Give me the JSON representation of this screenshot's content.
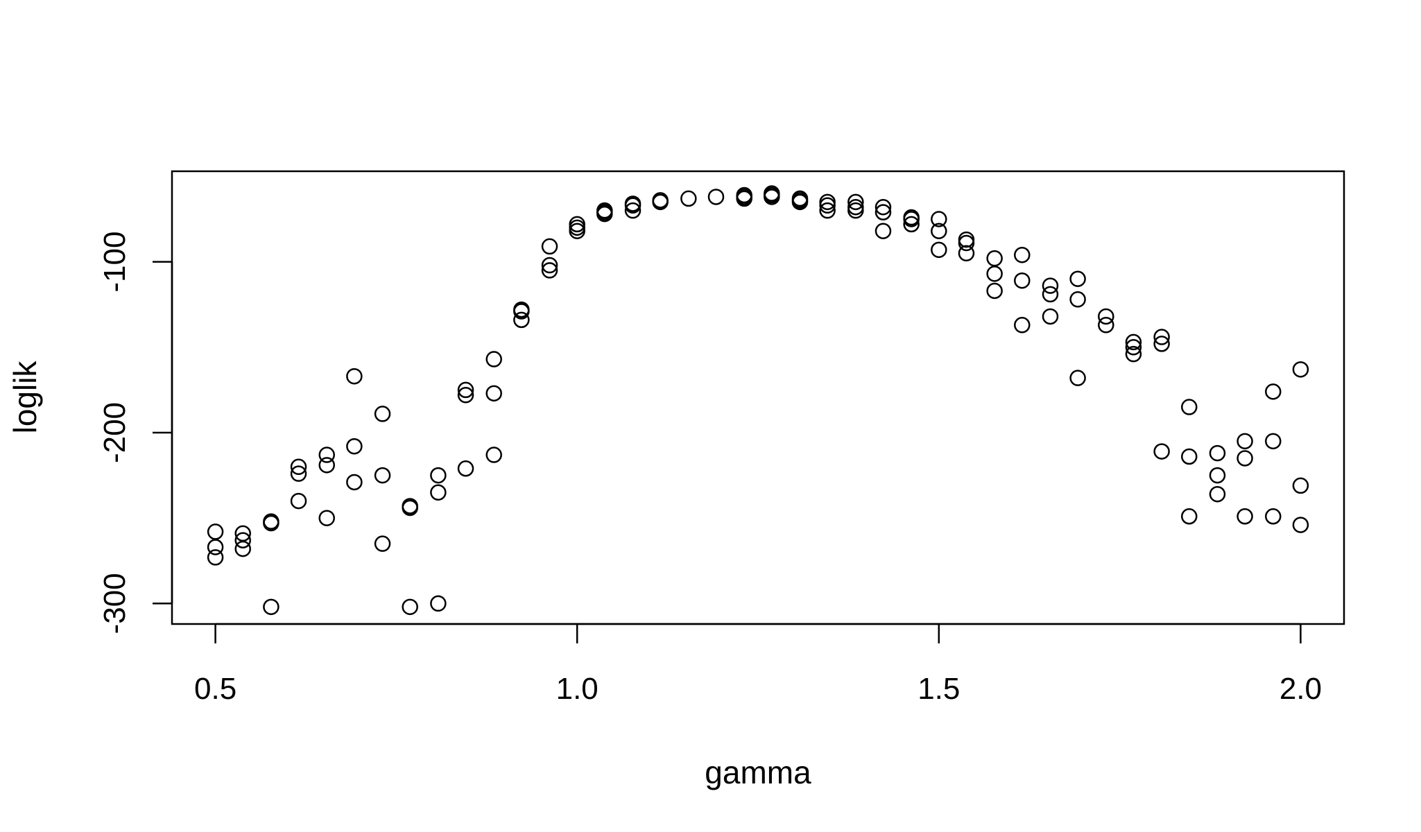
{
  "chart_data": {
    "type": "scatter",
    "title": "",
    "xlabel": "gamma",
    "ylabel": "loglik",
    "xlim": [
      0.44,
      2.06
    ],
    "ylim": [
      -312,
      -47
    ],
    "x_ticks": [
      {
        "value": 0.5,
        "label": "0.5"
      },
      {
        "value": 1.0,
        "label": "1.0"
      },
      {
        "value": 1.5,
        "label": "1.5"
      },
      {
        "value": 2.0,
        "label": "2.0"
      }
    ],
    "y_ticks": [
      {
        "value": -100,
        "label": "-100"
      },
      {
        "value": -200,
        "label": "-200"
      },
      {
        "value": -300,
        "label": "-300"
      }
    ],
    "grid": false,
    "marker": "open-circle",
    "color": "#000000",
    "series": [
      {
        "points": [
          [
            0.5,
            -258
          ],
          [
            0.5,
            -267
          ],
          [
            0.5,
            -273
          ],
          [
            0.538,
            -259
          ],
          [
            0.538,
            -263
          ],
          [
            0.538,
            -268
          ],
          [
            0.577,
            -252
          ],
          [
            0.577,
            -253
          ],
          [
            0.577,
            -302
          ],
          [
            0.615,
            -220
          ],
          [
            0.615,
            -224
          ],
          [
            0.615,
            -240
          ],
          [
            0.654,
            -213
          ],
          [
            0.654,
            -219
          ],
          [
            0.654,
            -250
          ],
          [
            0.692,
            -167
          ],
          [
            0.692,
            -208
          ],
          [
            0.692,
            -229
          ],
          [
            0.731,
            -189
          ],
          [
            0.731,
            -225
          ],
          [
            0.731,
            -265
          ],
          [
            0.769,
            -243
          ],
          [
            0.769,
            -244
          ],
          [
            0.769,
            -302
          ],
          [
            0.808,
            -225
          ],
          [
            0.808,
            -235
          ],
          [
            0.808,
            -300
          ],
          [
            0.846,
            -175
          ],
          [
            0.846,
            -178
          ],
          [
            0.846,
            -221
          ],
          [
            0.885,
            -157
          ],
          [
            0.885,
            -177
          ],
          [
            0.885,
            -213
          ],
          [
            0.923,
            -128
          ],
          [
            0.923,
            -129
          ],
          [
            0.923,
            -134
          ],
          [
            0.962,
            -91
          ],
          [
            0.962,
            -102
          ],
          [
            0.962,
            -105
          ],
          [
            1.0,
            -78
          ],
          [
            1.0,
            -80
          ],
          [
            1.0,
            -82
          ],
          [
            1.038,
            -70
          ],
          [
            1.038,
            -71
          ],
          [
            1.038,
            -72
          ],
          [
            1.077,
            -66
          ],
          [
            1.077,
            -67
          ],
          [
            1.077,
            -70
          ],
          [
            1.115,
            -64
          ],
          [
            1.115,
            -65
          ],
          [
            1.154,
            -63
          ],
          [
            1.192,
            -62
          ],
          [
            1.231,
            -61
          ],
          [
            1.231,
            -62
          ],
          [
            1.231,
            -63
          ],
          [
            1.269,
            -60
          ],
          [
            1.269,
            -61
          ],
          [
            1.269,
            -62
          ],
          [
            1.308,
            -63
          ],
          [
            1.308,
            -64
          ],
          [
            1.308,
            -65
          ],
          [
            1.346,
            -65
          ],
          [
            1.346,
            -67
          ],
          [
            1.346,
            -70
          ],
          [
            1.385,
            -65
          ],
          [
            1.385,
            -68
          ],
          [
            1.385,
            -70
          ],
          [
            1.423,
            -68
          ],
          [
            1.423,
            -71
          ],
          [
            1.423,
            -82
          ],
          [
            1.462,
            -74
          ],
          [
            1.462,
            -75
          ],
          [
            1.462,
            -78
          ],
          [
            1.5,
            -75
          ],
          [
            1.5,
            -82
          ],
          [
            1.5,
            -93
          ],
          [
            1.538,
            -87
          ],
          [
            1.538,
            -89
          ],
          [
            1.538,
            -95
          ],
          [
            1.577,
            -98
          ],
          [
            1.577,
            -107
          ],
          [
            1.577,
            -117
          ],
          [
            1.615,
            -96
          ],
          [
            1.615,
            -111
          ],
          [
            1.615,
            -137
          ],
          [
            1.654,
            -114
          ],
          [
            1.654,
            -119
          ],
          [
            1.654,
            -132
          ],
          [
            1.692,
            -110
          ],
          [
            1.692,
            -122
          ],
          [
            1.692,
            -168
          ],
          [
            1.731,
            -132
          ],
          [
            1.731,
            -137
          ],
          [
            1.769,
            -147
          ],
          [
            1.769,
            -150
          ],
          [
            1.769,
            -154
          ],
          [
            1.808,
            -144
          ],
          [
            1.808,
            -148
          ],
          [
            1.808,
            -211
          ],
          [
            1.846,
            -185
          ],
          [
            1.846,
            -214
          ],
          [
            1.846,
            -249
          ],
          [
            1.885,
            -212
          ],
          [
            1.885,
            -225
          ],
          [
            1.885,
            -236
          ],
          [
            1.923,
            -205
          ],
          [
            1.923,
            -215
          ],
          [
            1.923,
            -249
          ],
          [
            1.962,
            -176
          ],
          [
            1.962,
            -205
          ],
          [
            1.962,
            -249
          ],
          [
            2.0,
            -163
          ],
          [
            2.0,
            -231
          ],
          [
            2.0,
            -254
          ]
        ]
      }
    ]
  }
}
